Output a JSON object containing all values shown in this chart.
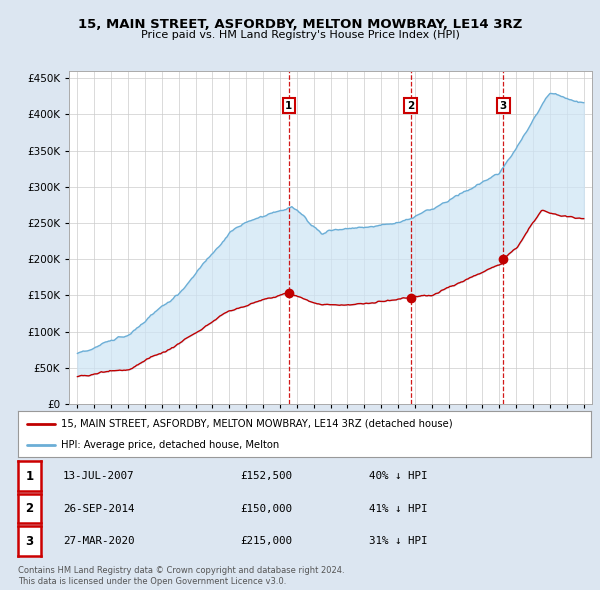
{
  "title": "15, MAIN STREET, ASFORDBY, MELTON MOWBRAY, LE14 3RZ",
  "subtitle": "Price paid vs. HM Land Registry's House Price Index (HPI)",
  "legend_line1": "15, MAIN STREET, ASFORDBY, MELTON MOWBRAY, LE14 3RZ (detached house)",
  "legend_line2": "HPI: Average price, detached house, Melton",
  "footnote1": "Contains HM Land Registry data © Crown copyright and database right 2024.",
  "footnote2": "This data is licensed under the Open Government Licence v3.0.",
  "transactions": [
    {
      "num": 1,
      "date": "13-JUL-2007",
      "date_x": 2007.53,
      "price": 152500,
      "pct": "40%",
      "dir": "↓"
    },
    {
      "num": 2,
      "date": "26-SEP-2014",
      "date_x": 2014.74,
      "price": 150000,
      "pct": "41%",
      "dir": "↓"
    },
    {
      "num": 3,
      "date": "27-MAR-2020",
      "date_x": 2020.24,
      "price": 215000,
      "pct": "31%",
      "dir": "↓"
    }
  ],
  "hpi_color": "#6baed6",
  "price_color": "#c00000",
  "vline_color": "#cc0000",
  "fill_color": "#cde4f5",
  "background_color": "#dce6f1",
  "plot_bg": "#ffffff",
  "ylim": [
    0,
    460000
  ],
  "yticks": [
    0,
    50000,
    100000,
    150000,
    200000,
    250000,
    300000,
    350000,
    400000,
    450000
  ],
  "xlim_start": 1994.5,
  "xlim_end": 2025.5,
  "xticks": [
    1995,
    1996,
    1997,
    1998,
    1999,
    2000,
    2001,
    2002,
    2003,
    2004,
    2005,
    2006,
    2007,
    2008,
    2009,
    2010,
    2011,
    2012,
    2013,
    2014,
    2015,
    2016,
    2017,
    2018,
    2019,
    2020,
    2021,
    2022,
    2023,
    2024,
    2025
  ]
}
